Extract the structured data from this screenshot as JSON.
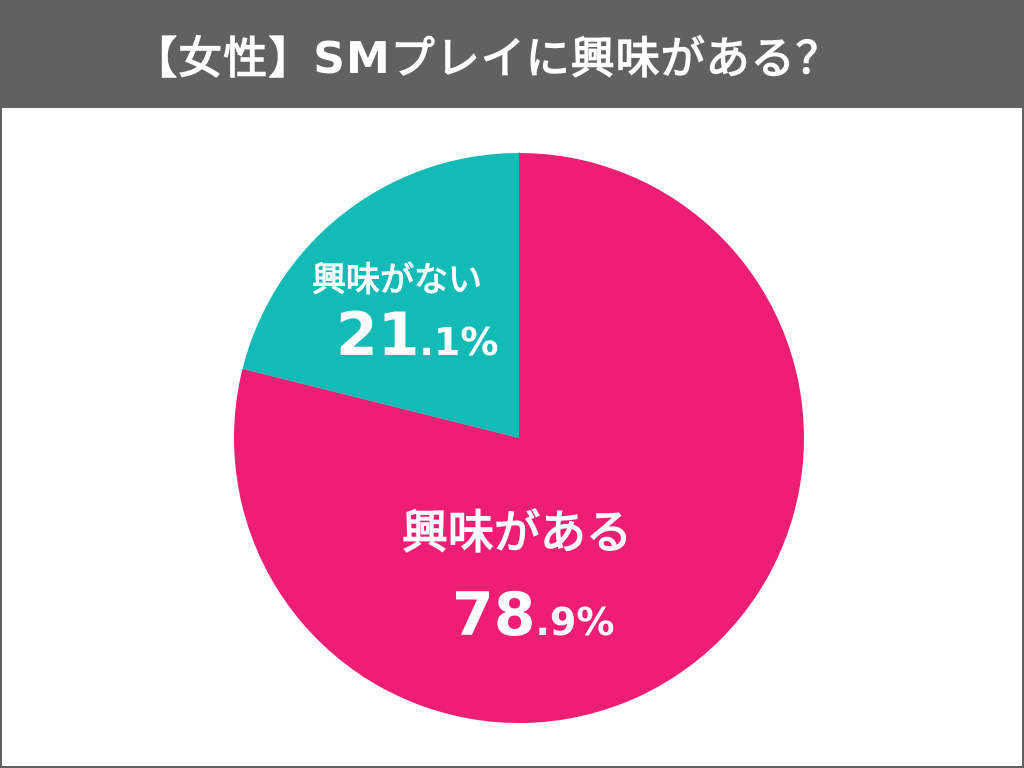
{
  "header": {
    "title": "【女性】SMプレイに興味がある？"
  },
  "colors": {
    "header_bg": "#616161",
    "yes": "#ED1E74",
    "no": "#13BBB7",
    "text": "#ffffff"
  },
  "slices": [
    {
      "label": "興味がある",
      "int": "78",
      "dec": ".9%",
      "value": 78.9,
      "color": "#ED1E74"
    },
    {
      "label": "興味がない",
      "int": "21",
      "dec": ".1%",
      "value": 21.1,
      "color": "#13BBB7"
    }
  ],
  "chart_data": {
    "type": "pie",
    "title": "【女性】SMプレイに興味がある？",
    "categories": [
      "興味がある",
      "興味がない"
    ],
    "values": [
      78.9,
      21.1
    ],
    "unit": "%",
    "colors": [
      "#ED1E74",
      "#13BBB7"
    ],
    "start_angle": "12 o'clock",
    "direction": "clockwise for 興味がある; 興味がない occupies upper-left",
    "legend": "none (labels inside slices)"
  }
}
